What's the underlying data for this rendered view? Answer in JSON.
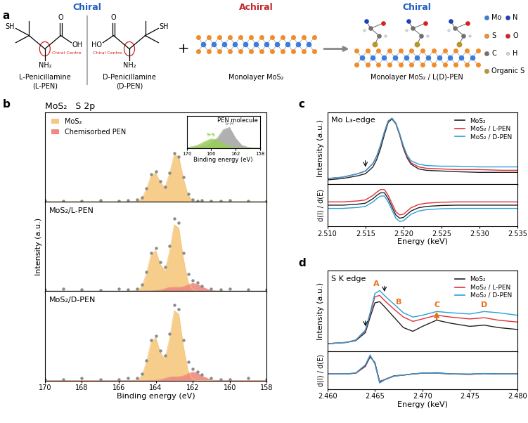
{
  "panel_a": {
    "label": "a",
    "headers": [
      {
        "text": "Chiral",
        "color": "#1f5fbf"
      },
      {
        "text": "Achiral",
        "color": "#c0282d"
      },
      {
        "text": "Chiral",
        "color": "#1f5fbf"
      }
    ],
    "molecules": [
      {
        "caption": [
          "L-Penicillamine",
          "(L-PEN)"
        ],
        "thiol": "SH",
        "hydroxyl": "OH",
        "carbonyl": "O",
        "amine": "NH₂",
        "chiral_label": "Chiral Centre"
      },
      {
        "caption": [
          "D-Penicillamine",
          "(D-PEN)"
        ],
        "thiol": "SH",
        "hydroxyl": "HO",
        "carbonyl": "O",
        "amine": "NH₂",
        "chiral_label": "Chiral Centre"
      }
    ],
    "plus": "+",
    "substrate": "Monolayer MoS₂",
    "product": "Monolayer MoS₂ / L(D)-PEN",
    "atoms": [
      {
        "name": "Mo",
        "color": "#3b7ddd"
      },
      {
        "name": "N",
        "color": "#1f3fbf"
      },
      {
        "name": "S",
        "color": "#f08c2a"
      },
      {
        "name": "O",
        "color": "#d62020"
      },
      {
        "name": "C",
        "color": "#707070"
      },
      {
        "name": "H",
        "color": "#d8d8d8"
      },
      {
        "name": "Organic S",
        "color": "#b8962e"
      }
    ]
  },
  "chart_data": [
    {
      "type": "area",
      "label": "b",
      "title": "MoS₂   S 2p",
      "x": [
        170,
        169,
        168,
        167,
        166,
        165.5,
        165,
        164.75,
        164.5,
        164.25,
        164,
        163.75,
        163.5,
        163.25,
        163,
        162.75,
        162.5,
        162.25,
        162,
        161.75,
        161.5,
        161,
        160.5,
        160,
        159,
        158
      ],
      "xlim": [
        170,
        158
      ],
      "xticks": [
        170,
        168,
        166,
        164,
        162,
        160,
        158
      ],
      "ylim": [
        0,
        1.8
      ],
      "tick_labels": false,
      "legend": "upper left",
      "measured": [
        0.03,
        0.01,
        0.02,
        0.03,
        0.02,
        0.03,
        0.04,
        0.09,
        0.27,
        0.55,
        0.6,
        0.41,
        0.3,
        0.58,
        0.98,
        0.91,
        0.49,
        0.15,
        0.04,
        0.02,
        0.03,
        0.01,
        0.02,
        0.03,
        0.02,
        0.01
      ],
      "measured_color": "#8c8c8c",
      "series": [
        {
          "name": "MoS₂",
          "color": "#f6c87f",
          "values": [
            0,
            0,
            0,
            0,
            0,
            0,
            0.01,
            0.067,
            0.254,
            0.521,
            0.583,
            0.38,
            0.29,
            0.57,
            0.95,
            0.9,
            0.46,
            0.13,
            0.02,
            0,
            0,
            0,
            0,
            0,
            0,
            0
          ]
        },
        {
          "name": "Chemisorbed PEN",
          "color": "#ee8a7e",
          "values": [
            0,
            0,
            0,
            0,
            0,
            0,
            0,
            0,
            0,
            0,
            0,
            0,
            0,
            0,
            0,
            0,
            0,
            0,
            0,
            0,
            0,
            0,
            0,
            0,
            0,
            0
          ]
        }
      ],
      "inset": {
        "type": "area",
        "title": "PEN molecule",
        "x_label": "Binding energy (eV)",
        "x": [
          170,
          169,
          168,
          167,
          166,
          165,
          164,
          163,
          162,
          161,
          160,
          159,
          158
        ],
        "xlim": [
          170,
          158
        ],
        "xticks": [
          170,
          166,
          162,
          158
        ],
        "ylim": [
          0,
          1.5
        ],
        "tick_labels": "x",
        "series": [
          {
            "name": "S-H",
            "color": "#a8a8a8",
            "values": [
              0,
              0,
              0.02,
              0.06,
              0.2,
              0.45,
              0.85,
              0.95,
              0.45,
              0.12,
              0.03,
              0,
              0
            ]
          },
          {
            "name": "S-S",
            "color": "#9acd5a",
            "values": [
              0.02,
              0.06,
              0.15,
              0.3,
              0.42,
              0.38,
              0.2,
              0.06,
              0.01,
              0,
              0,
              0,
              0
            ]
          }
        ]
      }
    },
    {
      "type": "area",
      "title": "MoS₂/L-PEN",
      "y_label": "Intensity (a.u.)",
      "x": [
        170,
        169,
        168,
        167,
        166,
        165.5,
        165,
        164.75,
        164.5,
        164.25,
        164,
        163.75,
        163.5,
        163.25,
        163,
        162.75,
        162.5,
        162.25,
        162,
        161.75,
        161.5,
        161,
        160.5,
        160,
        159,
        158
      ],
      "xlim": [
        170,
        158
      ],
      "xticks": [
        170,
        168,
        166,
        164,
        162,
        160,
        158
      ],
      "ylim": [
        0,
        1.15
      ],
      "tick_labels": false,
      "measured": [
        0.02,
        0.03,
        0.02,
        0.01,
        0.03,
        0.02,
        0.03,
        0.08,
        0.25,
        0.49,
        0.55,
        0.37,
        0.31,
        0.58,
        0.93,
        0.88,
        0.49,
        0.22,
        0.14,
        0.11,
        0.07,
        0.03,
        0.02,
        0.03,
        0.02,
        0.02
      ],
      "measured_color": "#8c8c8c",
      "series": [
        {
          "color": "#f6c87f",
          "values": [
            0,
            0,
            0,
            0,
            0,
            0,
            0.009,
            0.06,
            0.229,
            0.469,
            0.522,
            0.342,
            0.261,
            0.513,
            0.855,
            0.81,
            0.414,
            0.117,
            0.018,
            0,
            0,
            0,
            0,
            0,
            0,
            0
          ]
        },
        {
          "color": "#ee8a7e",
          "values": [
            0,
            0,
            0,
            0,
            0,
            0,
            0,
            0,
            0.001,
            0.002,
            0.004,
            0.013,
            0.03,
            0.047,
            0.051,
            0.048,
            0.055,
            0.08,
            0.1,
            0.088,
            0.053,
            0.006,
            0,
            0,
            0,
            0
          ]
        }
      ]
    },
    {
      "type": "area",
      "title": "MoS₂/D-PEN",
      "x_label": "Binding energy (eV)",
      "x": [
        170,
        169,
        168,
        167,
        166,
        165.5,
        165,
        164.75,
        164.5,
        164.25,
        164,
        163.75,
        163.5,
        163.25,
        163,
        162.75,
        162.5,
        162.25,
        162,
        161.75,
        161.5,
        161,
        160.5,
        160,
        159,
        158
      ],
      "xlim": [
        170,
        158
      ],
      "xticks": [
        170,
        168,
        166,
        164,
        162,
        160,
        158
      ],
      "ylim": [
        0,
        1.15
      ],
      "tick_labels": "x",
      "measured": [
        0.02,
        0.02,
        0.03,
        0.02,
        0.02,
        0.03,
        0.03,
        0.09,
        0.26,
        0.52,
        0.58,
        0.39,
        0.32,
        0.6,
        0.97,
        0.92,
        0.52,
        0.24,
        0.15,
        0.12,
        0.08,
        0.03,
        0.02,
        0.02,
        0.03,
        0.02
      ],
      "measured_color": "#8c8c8c",
      "series": [
        {
          "color": "#f6c87f",
          "values": [
            0,
            0,
            0,
            0,
            0,
            0,
            0.01,
            0.064,
            0.241,
            0.495,
            0.554,
            0.361,
            0.276,
            0.542,
            0.9,
            0.855,
            0.437,
            0.124,
            0.019,
            0,
            0,
            0,
            0,
            0,
            0,
            0
          ]
        },
        {
          "color": "#ee8a7e",
          "values": [
            0,
            0,
            0,
            0,
            0,
            0,
            0,
            0,
            0.001,
            0.002,
            0.004,
            0.012,
            0.028,
            0.045,
            0.05,
            0.05,
            0.06,
            0.09,
            0.11,
            0.1,
            0.06,
            0.008,
            0,
            0,
            0,
            0
          ]
        }
      ]
    },
    {
      "type": "line",
      "label": "c",
      "title": "Mo L₃-edge",
      "y_label": "Intensity (a.u.)",
      "x": [
        2.51,
        2.512,
        2.514,
        2.515,
        2.516,
        2.5165,
        2.517,
        2.5175,
        2.518,
        2.5185,
        2.519,
        2.5195,
        2.52,
        2.5205,
        2.521,
        2.522,
        2.523,
        2.525,
        2.527,
        2.53,
        2.533,
        2.535
      ],
      "xlim": [
        2.51,
        2.535
      ],
      "xticks": [
        {
          "value": 2.51,
          "label": "2.510"
        },
        2.515,
        {
          "value": 2.52,
          "label": "2.520"
        },
        2.525,
        {
          "value": 2.53,
          "label": "2.530"
        },
        2.535
      ],
      "ylim": [
        0,
        1.05
      ],
      "tick_labels": false,
      "legend": "upper right",
      "arrows": [
        2.515
      ],
      "series": [
        {
          "name": "MoS₂",
          "color": "#222222",
          "values": [
            0.06,
            0.08,
            0.12,
            0.15,
            0.25,
            0.36,
            0.52,
            0.72,
            0.9,
            0.95,
            0.88,
            0.72,
            0.52,
            0.38,
            0.29,
            0.22,
            0.2,
            0.19,
            0.18,
            0.17,
            0.17,
            0.17
          ]
        },
        {
          "name": "MoS₂ / L-PEN",
          "color": "#e0303a",
          "values": [
            0.08,
            0.1,
            0.15,
            0.19,
            0.3,
            0.41,
            0.57,
            0.76,
            0.92,
            0.96,
            0.89,
            0.73,
            0.54,
            0.4,
            0.31,
            0.25,
            0.23,
            0.22,
            0.21,
            0.21,
            0.2,
            0.2
          ]
        },
        {
          "name": "MoS₂ / D-PEN",
          "color": "#2a9fd8",
          "values": [
            0.08,
            0.1,
            0.15,
            0.19,
            0.3,
            0.41,
            0.57,
            0.76,
            0.92,
            0.96,
            0.89,
            0.74,
            0.56,
            0.42,
            0.34,
            0.29,
            0.27,
            0.26,
            0.26,
            0.25,
            0.25,
            0.25
          ]
        }
      ]
    },
    {
      "type": "line",
      "y_label": "d(I) / d(E)",
      "x_label": "Energy (keV)",
      "x": [
        2.51,
        2.512,
        2.514,
        2.515,
        2.516,
        2.5165,
        2.517,
        2.5175,
        2.518,
        2.5185,
        2.519,
        2.5195,
        2.52,
        2.5205,
        2.521,
        2.522,
        2.523,
        2.525,
        2.527,
        2.53,
        2.533,
        2.535
      ],
      "xlim": [
        2.51,
        2.535
      ],
      "xticks": [
        {
          "value": 2.51,
          "label": "2.510"
        },
        2.515,
        {
          "value": 2.52,
          "label": "2.520"
        },
        2.525,
        {
          "value": 2.53,
          "label": "2.530"
        },
        2.535
      ],
      "ylim": [
        -0.6,
        0.7
      ],
      "tick_labels": "x",
      "series": [
        {
          "color": "#222222",
          "values": [
            0.05,
            0.05,
            0.08,
            0.11,
            0.25,
            0.35,
            0.43,
            0.43,
            0.25,
            0,
            -0.25,
            -0.35,
            -0.33,
            -0.23,
            -0.13,
            -0.03,
            0.01,
            0.04,
            0.05,
            0.05,
            0.05,
            0.05
          ]
        },
        {
          "color": "#e0303a",
          "values": [
            0.15,
            0.15,
            0.18,
            0.21,
            0.35,
            0.45,
            0.53,
            0.53,
            0.35,
            0.1,
            -0.15,
            -0.25,
            -0.23,
            -0.13,
            -0.03,
            0.07,
            0.11,
            0.14,
            0.15,
            0.15,
            0.15,
            0.15
          ]
        },
        {
          "color": "#2a9fd8",
          "values": [
            -0.05,
            -0.05,
            -0.02,
            0.01,
            0.15,
            0.25,
            0.33,
            0.33,
            0.15,
            -0.1,
            -0.35,
            -0.45,
            -0.43,
            -0.33,
            -0.23,
            -0.13,
            -0.09,
            -0.06,
            -0.05,
            -0.05,
            -0.05,
            -0.05
          ]
        }
      ]
    },
    {
      "type": "line",
      "label": "d",
      "title": "S K edge",
      "y_label": "Intensity (a.u.)",
      "x": [
        2.46,
        2.462,
        2.463,
        2.464,
        2.4645,
        2.465,
        2.4655,
        2.466,
        2.467,
        2.468,
        2.469,
        2.47,
        2.4715,
        2.473,
        2.475,
        2.4765,
        2.478,
        2.48
      ],
      "xlim": [
        2.46,
        2.48
      ],
      "xticks": [
        {
          "value": 2.46,
          "label": "2.460"
        },
        2.465,
        {
          "value": 2.47,
          "label": "2.470"
        },
        2.475,
        {
          "value": 2.48,
          "label": "2.480"
        }
      ],
      "ylim": [
        0,
        1.3
      ],
      "tick_labels": false,
      "legend": "upper right",
      "arrows": [
        2.464,
        2.466
      ],
      "peaks": [
        {
          "label": "A",
          "x": 2.4655
        },
        {
          "label": "B",
          "x": 2.4675
        },
        {
          "label": "C",
          "x": 2.4715
        },
        {
          "label": "D",
          "x": 2.4765
        }
      ],
      "peak_color": "#e8701a",
      "series": [
        {
          "name": "MoS₂",
          "color": "#222222",
          "values": [
            0.12,
            0.14,
            0.17,
            0.3,
            0.55,
            0.78,
            0.8,
            0.72,
            0.55,
            0.38,
            0.32,
            0.4,
            0.5,
            0.45,
            0.4,
            0.42,
            0.38,
            0.35
          ]
        },
        {
          "name": "MoS₂ / L-PEN",
          "color": "#e0303a",
          "values": [
            0.12,
            0.14,
            0.18,
            0.33,
            0.6,
            0.88,
            0.9,
            0.82,
            0.68,
            0.55,
            0.48,
            0.52,
            0.58,
            0.55,
            0.52,
            0.54,
            0.5,
            0.47
          ]
        },
        {
          "name": "MoS₂ / D-PEN",
          "color": "#2a9fd8",
          "values": [
            0.12,
            0.14,
            0.18,
            0.34,
            0.62,
            0.93,
            0.98,
            0.9,
            0.76,
            0.62,
            0.55,
            0.58,
            0.64,
            0.62,
            0.6,
            0.64,
            0.62,
            0.58
          ]
        }
      ]
    },
    {
      "type": "line",
      "y_label": "d(I) / d(E)",
      "x_label": "Energy (keV)",
      "x": [
        2.46,
        2.462,
        2.463,
        2.464,
        2.4645,
        2.465,
        2.4655,
        2.466,
        2.467,
        2.468,
        2.469,
        2.47,
        2.4715,
        2.473,
        2.475,
        2.4765,
        2.478,
        2.48
      ],
      "xlim": [
        2.46,
        2.48
      ],
      "xticks": [
        {
          "value": 2.46,
          "label": "2.460"
        },
        2.465,
        {
          "value": 2.47,
          "label": "2.470"
        },
        2.475,
        {
          "value": 2.48,
          "label": "2.480"
        }
      ],
      "ylim": [
        -0.4,
        0.6
      ],
      "tick_labels": "x",
      "series": [
        {
          "color": "#222222",
          "values": [
            0,
            0,
            0.02,
            0.2,
            0.45,
            0.3,
            -0.2,
            -0.15,
            -0.05,
            -0.03,
            0,
            0.02,
            0.03,
            0,
            -0.01,
            0.01,
            0,
            0
          ]
        },
        {
          "color": "#e0303a",
          "values": [
            0,
            0,
            0.02,
            0.22,
            0.48,
            0.28,
            -0.22,
            -0.15,
            -0.06,
            -0.03,
            0,
            0.02,
            0.02,
            0,
            -0.01,
            0.01,
            0,
            0
          ]
        },
        {
          "color": "#2a9fd8",
          "values": [
            0,
            0,
            0.03,
            0.24,
            0.5,
            0.26,
            -0.24,
            -0.16,
            -0.06,
            -0.03,
            0,
            0.02,
            0.02,
            0,
            0,
            0.01,
            0,
            0
          ]
        }
      ]
    }
  ]
}
